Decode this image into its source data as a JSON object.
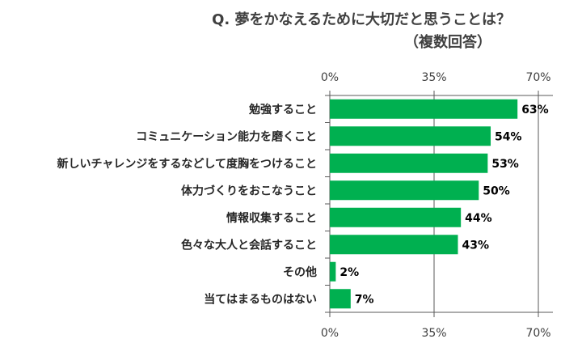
{
  "chart_data": {
    "type": "bar",
    "orientation": "horizontal",
    "title": "Q. 夢をかなえるために大切だと思うことは？",
    "subtitle": "（複数回答）",
    "categories": [
      "勉強すること",
      "コミュニケーション能力を磨くこと",
      "新しいチャレンジをするなどして度胸をつけること",
      "体力づくりをおこなうこと",
      "情報収集すること",
      "色々な大人と会話すること",
      "その他",
      "当てはまるものはない"
    ],
    "values": [
      63,
      54,
      53,
      50,
      44,
      43,
      2,
      7
    ],
    "value_labels": [
      "63%",
      "54%",
      "53%",
      "50%",
      "44%",
      "43%",
      "2%",
      "7%"
    ],
    "xlim": [
      0,
      70
    ],
    "ticks": [
      0,
      35,
      70
    ],
    "tick_labels": [
      "0%",
      "35%",
      "70%"
    ],
    "xlabel": "",
    "ylabel": "",
    "grid": true,
    "bar_color": "#00b050"
  }
}
